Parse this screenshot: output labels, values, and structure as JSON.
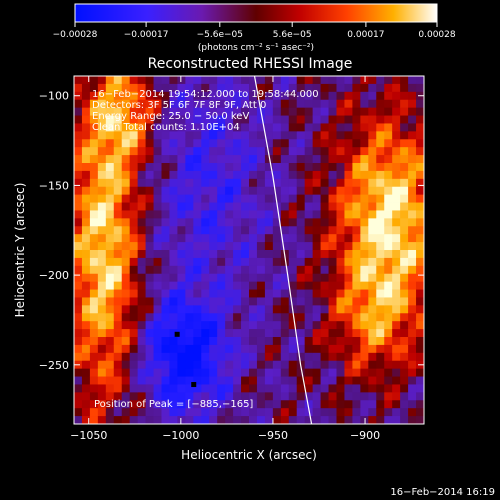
{
  "chart_data": {
    "type": "heatmap",
    "title": "Reconstructed RHESSI Image",
    "xlabel": "Heliocentric X (arcsec)",
    "ylabel": "Heliocentric Y (arcsec)",
    "xlim": [
      -1058,
      -868
    ],
    "ylim": [
      -283,
      -89
    ],
    "xticks": [
      -1050,
      -1000,
      -950,
      -900
    ],
    "xtick_labels": [
      "−1050",
      "−1000",
      "−950",
      "−900"
    ],
    "yticks": [
      -100,
      -150,
      -200,
      -250
    ],
    "ytick_labels": [
      "−100",
      "−150",
      "−200",
      "−250"
    ],
    "colorbar": {
      "min": -0.00028,
      "max": 0.00028,
      "ticks": [
        -0.00028,
        -0.00017,
        -5.6e-05,
        5.6e-05,
        0.00017,
        0.00028
      ],
      "tick_labels": [
        "−0.00028",
        "−0.00017",
        "−5.6e−05",
        "5.6e−05",
        "0.00017",
        "0.00028"
      ],
      "units_label": "(photons cm⁻² s⁻¹ asec⁻²)",
      "colormap": "RHESSI blue-purple-red-yellow-white"
    },
    "annotations": [
      "16−Feb−2014 19:54:12.000 to 19:58:44.000",
      "Detectors: 3F 5F 6F 7F 8F 9F, Att 0",
      "Energy Range: 25.0 − 50.0 keV",
      "Clean    Total counts: 1.10E+04"
    ],
    "peak_label": "Position of Peak = [−885,−165]",
    "peak_position": [
      -885,
      -165
    ],
    "limb_curve": [
      [
        -960,
        -89
      ],
      [
        -950,
        -145
      ],
      [
        -942,
        -200
      ],
      [
        -935,
        -250
      ],
      [
        -929,
        -283
      ]
    ],
    "sources": [
      {
        "name": "left-limb source",
        "x": -1042,
        "y": -180,
        "level": 0.00028
      },
      {
        "name": "right-limb source",
        "x": -887,
        "y": -168,
        "level": 0.00028
      },
      {
        "name": "negative sidelobe",
        "x": -998,
        "y": -245,
        "level": -0.00028
      }
    ],
    "markers": [
      [
        -1002,
        -233
      ],
      [
        -993,
        -261
      ]
    ],
    "footer": "16−Feb−2014 16:19"
  }
}
